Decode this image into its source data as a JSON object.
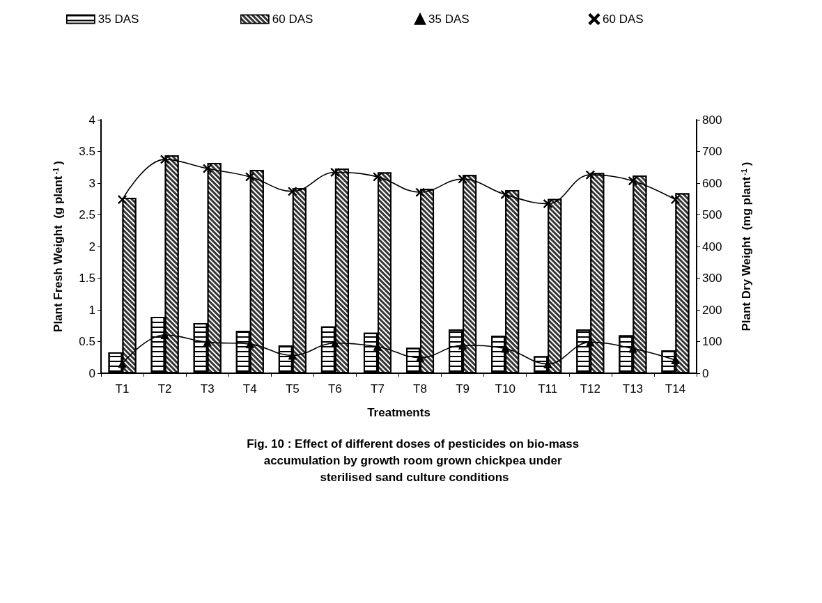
{
  "chart_data": {
    "type": "bar",
    "title": "Fig. 10 : Effect of different doses of pesticides on bio-mass accumulation by growth room grown chickpea under sterilised sand culture conditions",
    "xlabel": "Treatments",
    "ylabel": "Plant Fresh Weight  (g plant$^{-1}$)",
    "y2label": "Plant Dry Weight  (mg plant$^{-1}$)",
    "categories": [
      "T1",
      "T2",
      "T3",
      "T4",
      "T5",
      "T6",
      "T7",
      "T8",
      "T9",
      "T10",
      "T11",
      "T12",
      "T13",
      "T14"
    ],
    "series": [
      {
        "name": "35 DAS",
        "color": "#ffffff",
        "values": [
          0.33,
          0.89,
          0.79,
          0.67,
          0.44,
          0.74,
          0.64,
          0.4,
          0.69,
          0.59,
          0.27,
          0.69,
          0.6,
          0.36
        ]
      },
      {
        "name": "60 DAS",
        "color": "#333333",
        "values": [
          2.77,
          3.44,
          3.32,
          3.21,
          2.92,
          3.23,
          3.17,
          2.91,
          3.13,
          2.89,
          2.75,
          3.16,
          3.12,
          2.84
        ]
      },
      {
        "name": "35 DAS",
        "type": "line",
        "axis": "y2",
        "color": "#000000",
        "marker": "triangle",
        "values": [
          30,
          121,
          98,
          92,
          56,
          95,
          84,
          49,
          88,
          78,
          29,
          98,
          78,
          42
        ]
      },
      {
        "name": "60 DAS",
        "type": "line",
        "axis": "y2",
        "color": "#000000",
        "marker": "cross",
        "values": [
          548,
          675,
          646,
          620,
          574,
          634,
          620,
          571,
          613,
          564,
          535,
          626,
          607,
          548
        ]
      }
    ],
    "ylim": [
      0,
      4
    ],
    "yticks": [
      0,
      0.5,
      1,
      1.5,
      2,
      2.5,
      3,
      3.5,
      4
    ],
    "y2lim": [
      0,
      800
    ],
    "y2ticks": [
      0,
      100,
      200,
      300,
      400,
      500,
      600,
      700,
      800
    ],
    "legend": "top",
    "grid": false,
    "line_style": "solid"
  }
}
